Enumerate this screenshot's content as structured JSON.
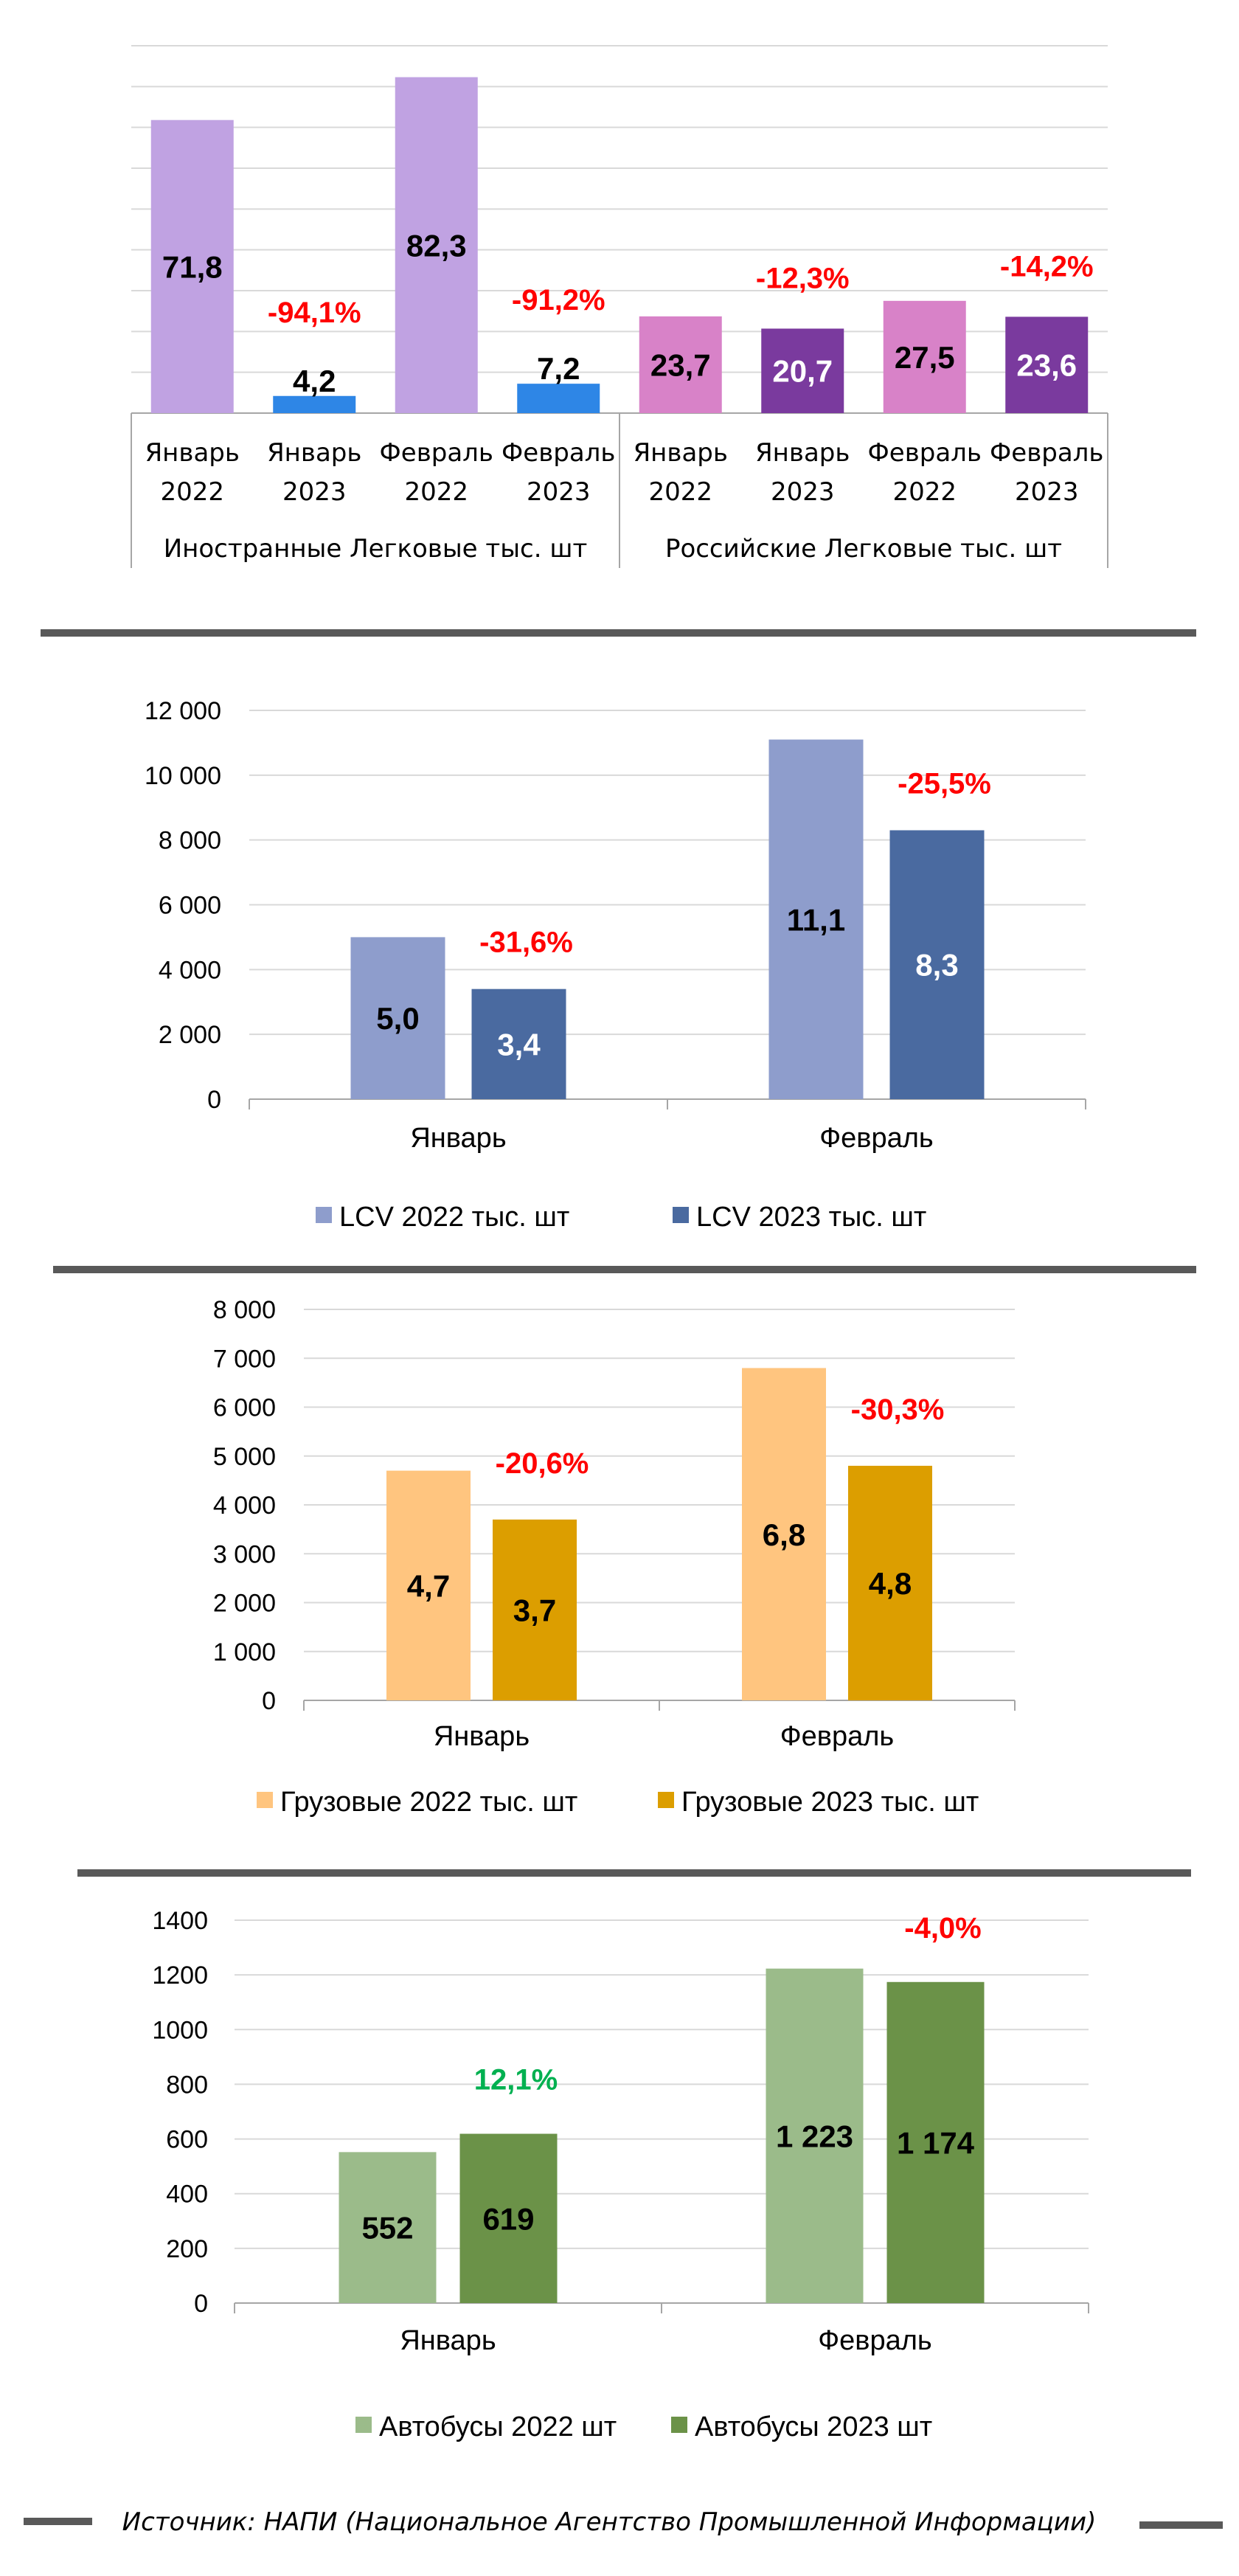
{
  "source_text": "Источник: НАПИ (Национальное Агентство Промышленной Информации)",
  "colors": {
    "divider": "#595959",
    "grid": "#d9d9d9",
    "axis": "#a6a6a6",
    "negative": "#ff0000",
    "positive": "#00b050"
  },
  "chart_data": [
    {
      "type": "bar",
      "title": "",
      "groups": [
        {
          "label": "Иностранные Легковые тыс. шт",
          "bars": [
            {
              "cat": [
                "Январь",
                "2022"
              ],
              "value": 71.8,
              "label": "71,8",
              "color": "#c0a2e2",
              "label_color": "#000000"
            },
            {
              "cat": [
                "Январь",
                "2023"
              ],
              "value": 4.2,
              "label": "4,2",
              "color": "#2e86e6",
              "label_color": "#000000",
              "change": "-94,1%"
            },
            {
              "cat": [
                "Февраль",
                "2022"
              ],
              "value": 82.3,
              "label": "82,3",
              "color": "#c0a2e2",
              "label_color": "#000000"
            },
            {
              "cat": [
                "Февраль",
                "2023"
              ],
              "value": 7.2,
              "label": "7,2",
              "color": "#2e86e6",
              "label_color": "#000000",
              "change": "-91,2%"
            }
          ]
        },
        {
          "label": "Российские Легковые тыс. шт",
          "bars": [
            {
              "cat": [
                "Январь",
                "2022"
              ],
              "value": 23.7,
              "label": "23,7",
              "color": "#d882c8",
              "label_color": "#000000"
            },
            {
              "cat": [
                "Январь",
                "2023"
              ],
              "value": 20.7,
              "label": "20,7",
              "color": "#7a3a9e",
              "label_color": "#ffffff",
              "change": "-12,3%"
            },
            {
              "cat": [
                "Февраль",
                "2022"
              ],
              "value": 27.5,
              "label": "27,5",
              "color": "#d882c8",
              "label_color": "#000000"
            },
            {
              "cat": [
                "Февраль",
                "2023"
              ],
              "value": 23.6,
              "label": "23,6",
              "color": "#7a3a9e",
              "label_color": "#ffffff",
              "change": "-14,2%"
            }
          ]
        }
      ],
      "ylim": [
        0,
        90
      ],
      "grid": true
    },
    {
      "type": "bar",
      "title": "",
      "categories": [
        "Январь",
        "Февраль"
      ],
      "series": [
        {
          "name": "LCV 2022 тыс. шт",
          "values": [
            5000,
            11100
          ],
          "labels": [
            "5,0",
            "11,1"
          ],
          "color": "#8e9dcc",
          "label_color": "#000000"
        },
        {
          "name": "LCV 2023 тыс. шт",
          "values": [
            3400,
            8300
          ],
          "labels": [
            "3,4",
            "8,3"
          ],
          "color": "#4a6aa0",
          "label_color": "#ffffff"
        }
      ],
      "changes": [
        "-31,6%",
        "-25,5%"
      ],
      "yticks": [
        "0",
        "2 000",
        "4 000",
        "6 000",
        "8 000",
        "10 000",
        "12 000"
      ],
      "ylim": [
        0,
        12000
      ],
      "legend": "bottom",
      "grid": true
    },
    {
      "type": "bar",
      "title": "",
      "categories": [
        "Январь",
        "Февраль"
      ],
      "series": [
        {
          "name": "Грузовые 2022 тыс. шт",
          "values": [
            4700,
            6800
          ],
          "labels": [
            "4,7",
            "6,8"
          ],
          "color": "#ffc57f",
          "label_color": "#000000"
        },
        {
          "name": "Грузовые 2023 тыс. шт",
          "values": [
            3700,
            4800
          ],
          "labels": [
            "3,7",
            "4,8"
          ],
          "color": "#dc9e00",
          "label_color": "#000000"
        }
      ],
      "changes": [
        "-20,6%",
        "-30,3%"
      ],
      "yticks": [
        "0",
        "1 000",
        "2 000",
        "3 000",
        "4 000",
        "5 000",
        "6 000",
        "7 000",
        "8 000"
      ],
      "ylim": [
        0,
        8000
      ],
      "legend": "bottom",
      "grid": true
    },
    {
      "type": "bar",
      "title": "",
      "categories": [
        "Январь",
        "Февраль"
      ],
      "series": [
        {
          "name": "Автобусы  2022 шт",
          "values": [
            552,
            1223
          ],
          "labels": [
            "552",
            "1 223"
          ],
          "color": "#9bbb8a",
          "label_color": "#000000"
        },
        {
          "name": "Автобусы  2023 шт",
          "values": [
            619,
            1174
          ],
          "labels": [
            "619",
            "1 174"
          ],
          "color": "#6b9248",
          "label_color": "#000000"
        }
      ],
      "changes": [
        "12,1%",
        "-4,0%"
      ],
      "change_colors": [
        "#00b050",
        "#ff0000"
      ],
      "yticks": [
        "0",
        "200",
        "400",
        "600",
        "800",
        "1000",
        "1200",
        "1400"
      ],
      "ylim": [
        0,
        1400
      ],
      "legend": "bottom",
      "grid": true
    }
  ]
}
